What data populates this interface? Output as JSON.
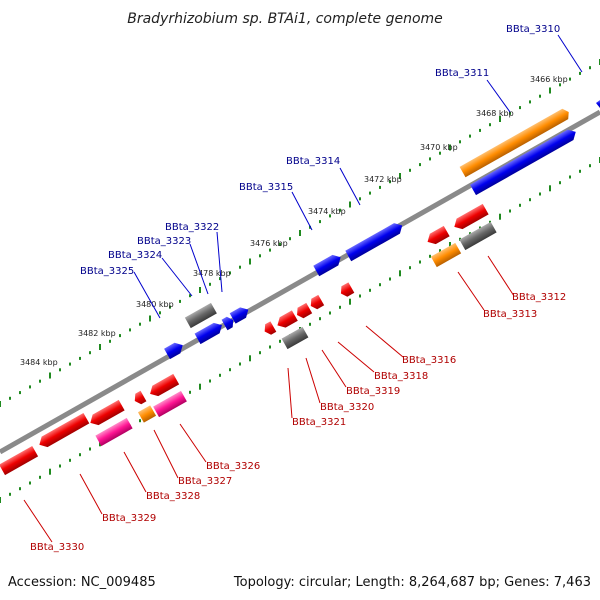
{
  "title": "Bradyrhizobium sp. BTAi1, complete genome",
  "footer": {
    "accession": "Accession: NC_009485",
    "topology": "Topology: circular; Length: 8,264,687 bp; Genes: 7,463"
  },
  "colors": {
    "backbone": "#888888",
    "forward": "#0000ee",
    "reverse": "#ee0000",
    "orange": "#ff8c00",
    "gray": "#666666",
    "pink": "#ff1493",
    "tick": "#228b22",
    "label_forward": "#00008b",
    "label_reverse": "#b00000"
  },
  "kbp_labels": [
    "3466 kbp",
    "3468 kbp",
    "3470 kbp",
    "3472 kbp",
    "3474 kbp",
    "3476 kbp",
    "3478 kbp",
    "3480 kbp",
    "3482 kbp",
    "3484 kbp"
  ],
  "forward_genes": [
    "BBta_3310",
    "BBta_3311",
    "BBta_3314",
    "BBta_3315",
    "BBta_3322",
    "BBta_3323",
    "BBta_3324",
    "BBta_3325"
  ],
  "reverse_genes": [
    "BBta_3312",
    "BBta_3313",
    "BBta_3316",
    "BBta_3318",
    "BBta_3319",
    "BBta_3320",
    "BBta_3321",
    "BBta_3326",
    "BBta_3327",
    "BBta_3328",
    "BBta_3329",
    "BBta_3330"
  ]
}
